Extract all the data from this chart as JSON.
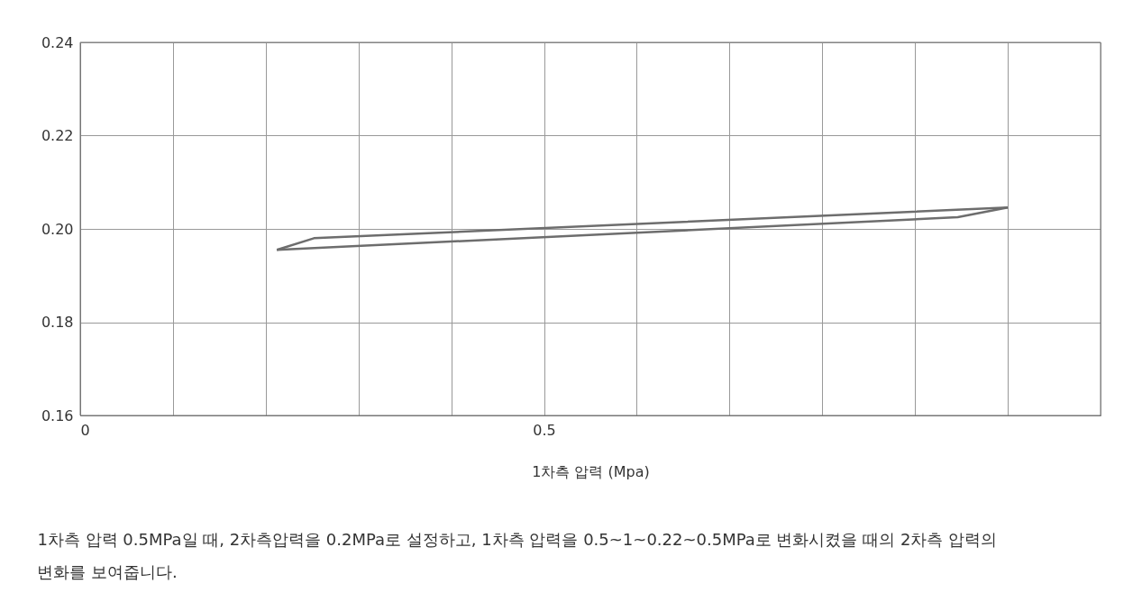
{
  "chart_data": {
    "type": "line",
    "xlabel": "1차측 압력 (Mpa)",
    "series": [
      {
        "color": "#6d6d6d",
        "x": [
          0.212,
          0.252,
          1.0
        ],
        "values": [
          0.1955,
          0.198,
          0.2046
        ]
      },
      {
        "color": "#6d6d6d",
        "x": [
          0.212,
          0.946,
          1.0
        ],
        "values": [
          0.1955,
          0.2025,
          0.2046
        ]
      }
    ],
    "xlim": [
      0,
      1.1
    ],
    "xticks": [
      0,
      {
        "value": 0.1,
        "label": null
      },
      {
        "value": 0.2,
        "label": null
      },
      {
        "value": 0.3,
        "label": null
      },
      {
        "value": 0.4,
        "label": null
      },
      0.5,
      {
        "value": 0.6,
        "label": null
      },
      {
        "value": 0.7,
        "label": null
      },
      {
        "value": 0.8,
        "label": null
      },
      {
        "value": 0.9,
        "label": null
      },
      {
        "value": 1.0,
        "label": null
      },
      {
        "value": 1.1,
        "label": null
      }
    ],
    "ylim": [
      0.16,
      0.24
    ],
    "yticks": [
      0.16,
      0.18,
      {
        "value": 0.2,
        "label": "0.20"
      },
      0.22,
      0.24
    ],
    "grid": true,
    "marker": "none",
    "line_style": "solid",
    "annotations": [
      "1차측 압력 0.5MPa일 때, 2차측압력을 0.2MPa로 설정하고, 1차측 압력을 0.5~1~0.22~0.5MPa로 변화시켰을 때의 2차측 압력의 변화를 보여줍니다."
    ]
  }
}
